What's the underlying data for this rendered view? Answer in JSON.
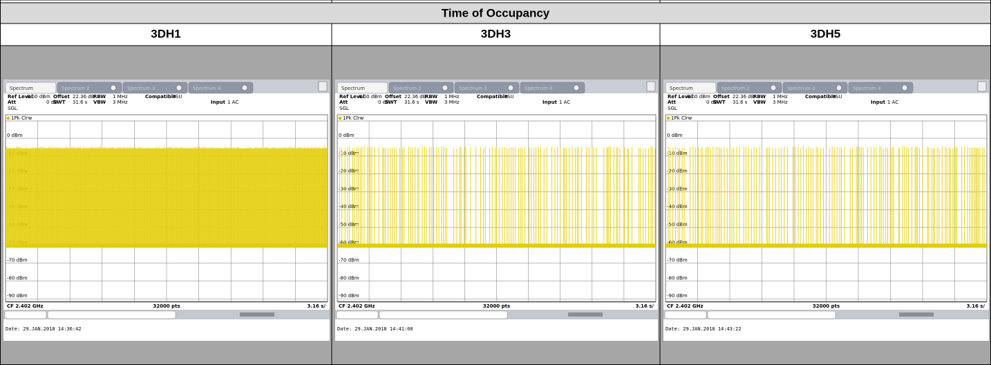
{
  "table": {
    "title": "Time of Occupancy",
    "panels": [
      {
        "heading": "3DH1",
        "date": "Date: 29.JAN.2018  14:36:42"
      },
      {
        "heading": "3DH3",
        "date": "Date: 29.JAN.2018  14:41:00"
      },
      {
        "heading": "3DH5",
        "date": "Date: 29.JAN.2018  14:43:22"
      }
    ],
    "analyzer": {
      "tabs": [
        "Spectrum",
        "Spectrum 2",
        "Spectrum 3",
        "Spectrum 4"
      ],
      "row1": [
        [
          "Ref Level",
          "8.00 dBm"
        ],
        [
          "Offset",
          "22.36 dB"
        ],
        [
          "RBW",
          "1 MHz"
        ],
        [
          "Compatible",
          "FSU"
        ]
      ],
      "row2": [
        [
          "Att",
          "0 dB"
        ],
        [
          "SWT",
          "31.6 s"
        ],
        [
          "VBW",
          "3 MHz"
        ],
        [
          "Input",
          "1 AC"
        ]
      ],
      "mode": "SGL",
      "trace": "1Pk Clrw",
      "y_labels": [
        "0 dBm",
        "-10 dBm",
        "-20 dBm",
        "-30 dBm",
        "-40 dBm",
        "-50 dBm",
        "-60 dBm",
        "-70 dBm",
        "-80 dBm",
        "-90 dBm"
      ],
      "center": "CF 2.402 GHz",
      "points": "32000 pts",
      "span": "3.16 s/"
    }
  }
}
